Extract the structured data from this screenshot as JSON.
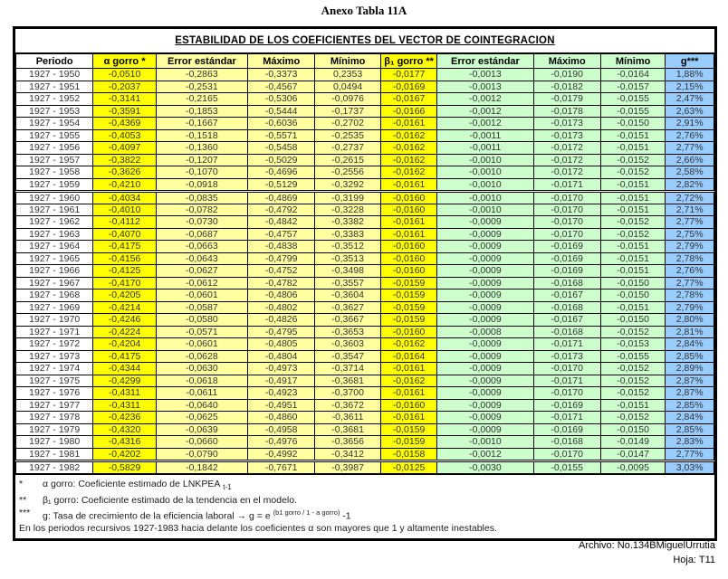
{
  "page_title": "Anexo Tabla 11A",
  "table": {
    "title": "ESTABILIDAD DE LOS COEFICIENTES DEL VECTOR DE COINTEGRACION",
    "columns": [
      "Periodo",
      "α gorro *",
      "Error estándar",
      "Máximo",
      "Mínimo",
      "β₁ gorro **",
      "Error estándar",
      "Máximo",
      "Mínimo",
      "g***"
    ],
    "rows": [
      [
        "1927 - 1950",
        "-0,0510",
        "-0,2863",
        "-0,3373",
        "0,2353",
        "-0,0177",
        "-0,0013",
        "-0,0190",
        "-0,0164",
        "1,88%"
      ],
      [
        "1927 - 1951",
        "-0,2037",
        "-0,2531",
        "-0,4567",
        "0,0494",
        "-0,0169",
        "-0,0013",
        "-0,0182",
        "-0,0157",
        "2,15%"
      ],
      [
        "1927 - 1952",
        "-0,3141",
        "-0,2165",
        "-0,5306",
        "-0,0976",
        "-0,0167",
        "-0,0012",
        "-0,0179",
        "-0,0155",
        "2,47%"
      ],
      [
        "1927 - 1953",
        "-0,3591",
        "-0,1853",
        "-0,5444",
        "-0,1737",
        "-0,0166",
        "-0,0012",
        "-0,0178",
        "-0,0155",
        "2,63%"
      ],
      [
        "1927 - 1954",
        "-0,4369",
        "-0,1667",
        "-0,6036",
        "-0,2702",
        "-0,0161",
        "-0,0012",
        "-0,0173",
        "-0,0150",
        "2,91%"
      ],
      [
        "1927 - 1955",
        "-0,4053",
        "-0,1518",
        "-0,5571",
        "-0,2535",
        "-0,0162",
        "-0,0011",
        "-0,0173",
        "-0,0151",
        "2,76%"
      ],
      [
        "1927 - 1956",
        "-0,4097",
        "-0,1360",
        "-0,5458",
        "-0,2737",
        "-0,0162",
        "-0,0011",
        "-0,0172",
        "-0,0151",
        "2,77%"
      ],
      [
        "1927 - 1957",
        "-0,3822",
        "-0,1207",
        "-0,5029",
        "-0,2615",
        "-0,0162",
        "-0,0010",
        "-0,0172",
        "-0,0152",
        "2,66%"
      ],
      [
        "1927 - 1958",
        "-0,3626",
        "-0,1070",
        "-0,4696",
        "-0,2556",
        "-0,0162",
        "-0,0010",
        "-0,0172",
        "-0,0152",
        "2,58%"
      ],
      [
        "1927 - 1959",
        "-0,4210",
        "-0,0918",
        "-0,5129",
        "-0,3292",
        "-0,0161",
        "-0,0010",
        "-0,0171",
        "-0,0151",
        "2,82%"
      ],
      [
        "1927 - 1960",
        "-0,4034",
        "-0,0835",
        "-0,4869",
        "-0,3199",
        "-0,0160",
        "-0,0010",
        "-0,0170",
        "-0,0151",
        "2,72%"
      ],
      [
        "1927 - 1961",
        "-0,4010",
        "-0,0782",
        "-0,4792",
        "-0,3228",
        "-0,0160",
        "-0,0010",
        "-0,0170",
        "-0,0151",
        "2,71%"
      ],
      [
        "1927 - 1962",
        "-0,4112",
        "-0,0730",
        "-0,4842",
        "-0,3382",
        "-0,0161",
        "-0,0009",
        "-0,0170",
        "-0,0152",
        "2,77%"
      ],
      [
        "1927 - 1963",
        "-0,4070",
        "-0,0687",
        "-0,4757",
        "-0,3383",
        "-0,0161",
        "-0,0009",
        "-0,0170",
        "-0,0152",
        "2,75%"
      ],
      [
        "1927 - 1964",
        "-0,4175",
        "-0,0663",
        "-0,4838",
        "-0,3512",
        "-0,0160",
        "-0,0009",
        "-0,0169",
        "-0,0151",
        "2,79%"
      ],
      [
        "1927 - 1965",
        "-0,4156",
        "-0,0643",
        "-0,4799",
        "-0,3513",
        "-0,0160",
        "-0,0009",
        "-0,0169",
        "-0,0151",
        "2,78%"
      ],
      [
        "1927 - 1966",
        "-0,4125",
        "-0,0627",
        "-0,4752",
        "-0,3498",
        "-0,0160",
        "-0,0009",
        "-0,0169",
        "-0,0151",
        "2,76%"
      ],
      [
        "1927 - 1967",
        "-0,4170",
        "-0,0612",
        "-0,4782",
        "-0,3557",
        "-0,0159",
        "-0,0009",
        "-0,0168",
        "-0,0150",
        "2,77%"
      ],
      [
        "1927 - 1968",
        "-0,4205",
        "-0,0601",
        "-0,4806",
        "-0,3604",
        "-0,0159",
        "-0,0009",
        "-0,0167",
        "-0,0150",
        "2,78%"
      ],
      [
        "1927 - 1969",
        "-0,4214",
        "-0,0587",
        "-0,4802",
        "-0,3627",
        "-0,0159",
        "-0,0009",
        "-0,0168",
        "-0,0151",
        "2,79%"
      ],
      [
        "1927 - 1970",
        "-0,4246",
        "-0,0580",
        "-0,4826",
        "-0,3667",
        "-0,0159",
        "-0,0009",
        "-0,0167",
        "-0,0150",
        "2,80%"
      ],
      [
        "1927 - 1971",
        "-0,4224",
        "-0,0571",
        "-0,4795",
        "-0,3653",
        "-0,0160",
        "-0,0008",
        "-0,0168",
        "-0,0152",
        "2,81%"
      ],
      [
        "1927 - 1972",
        "-0,4204",
        "-0,0601",
        "-0,4805",
        "-0,3603",
        "-0,0162",
        "-0,0009",
        "-0,0171",
        "-0,0153",
        "2,84%"
      ],
      [
        "1927 - 1973",
        "-0,4175",
        "-0,0628",
        "-0,4804",
        "-0,3547",
        "-0,0164",
        "-0,0009",
        "-0,0173",
        "-0,0155",
        "2,85%"
      ],
      [
        "1927 - 1974",
        "-0,4344",
        "-0,0630",
        "-0,4973",
        "-0,3714",
        "-0,0161",
        "-0,0009",
        "-0,0170",
        "-0,0152",
        "2,89%"
      ],
      [
        "1927 - 1975",
        "-0,4299",
        "-0,0618",
        "-0,4917",
        "-0,3681",
        "-0,0162",
        "-0,0009",
        "-0,0171",
        "-0,0152",
        "2,87%"
      ],
      [
        "1927 - 1976",
        "-0,4311",
        "-0,0611",
        "-0,4923",
        "-0,3700",
        "-0,0161",
        "-0,0009",
        "-0,0170",
        "-0,0152",
        "2,87%"
      ],
      [
        "1927 - 1977",
        "-0,4311",
        "-0,0640",
        "-0,4951",
        "-0,3672",
        "-0,0160",
        "-0,0009",
        "-0,0169",
        "-0,0151",
        "2,85%"
      ],
      [
        "1927 - 1978",
        "-0,4236",
        "-0,0625",
        "-0,4860",
        "-0,3611",
        "-0,0161",
        "-0,0009",
        "-0,0171",
        "-0,0152",
        "2,84%"
      ],
      [
        "1927 - 1979",
        "-0,4320",
        "-0,0639",
        "-0,4958",
        "-0,3681",
        "-0,0159",
        "-0,0009",
        "-0,0169",
        "-0,0150",
        "2,85%"
      ],
      [
        "1927 - 1980",
        "-0,4316",
        "-0,0660",
        "-0,4976",
        "-0,3656",
        "-0,0159",
        "-0,0010",
        "-0,0168",
        "-0,0149",
        "2,83%"
      ],
      [
        "1927 - 1981",
        "-0,4202",
        "-0,0790",
        "-0,4992",
        "-0,3412",
        "-0,0158",
        "-0,0012",
        "-0,0170",
        "-0,0147",
        "2,77%"
      ],
      [
        "1927 - 1982",
        "-0,5829",
        "-0,1842",
        "-0,7671",
        "-0,3987",
        "-0,0125",
        "-0,0030",
        "-0,0155",
        "-0,0095",
        "3,03%"
      ]
    ],
    "group_separators_after": [
      "1927 - 1959",
      "1927 - 1981"
    ]
  },
  "footnotes": {
    "alpha": {
      "marker": "*",
      "text": "α gorro:  Coeficiente estimado de LNKPEA",
      "subscript": "t-1"
    },
    "beta": {
      "marker": "**",
      "text": "β₁ gorro:  Coeficiente estimado de la tendencia en el modelo."
    },
    "g": {
      "marker": "***",
      "text": "g:  Tasa de crecimiento de la eficiencia laboral   →   g = e",
      "exponent": "(b1 gorro / 1 -  a gorro)",
      "tail": "-1"
    },
    "note": "En los periodos recursivos  1927-1983 hacia delante los coeficientes α son mayores que 1 y altamente inestables."
  },
  "footer": {
    "archivo": "Archivo:  No.134BMiguelUrrutia",
    "hoja": "Hoja:  T11"
  },
  "colors": {
    "highlight_yellow": "#ffff00",
    "light_yellow": "#ffffa0",
    "light_green": "#ccffcc",
    "light_blue": "#99ccff",
    "border": "#000000"
  }
}
